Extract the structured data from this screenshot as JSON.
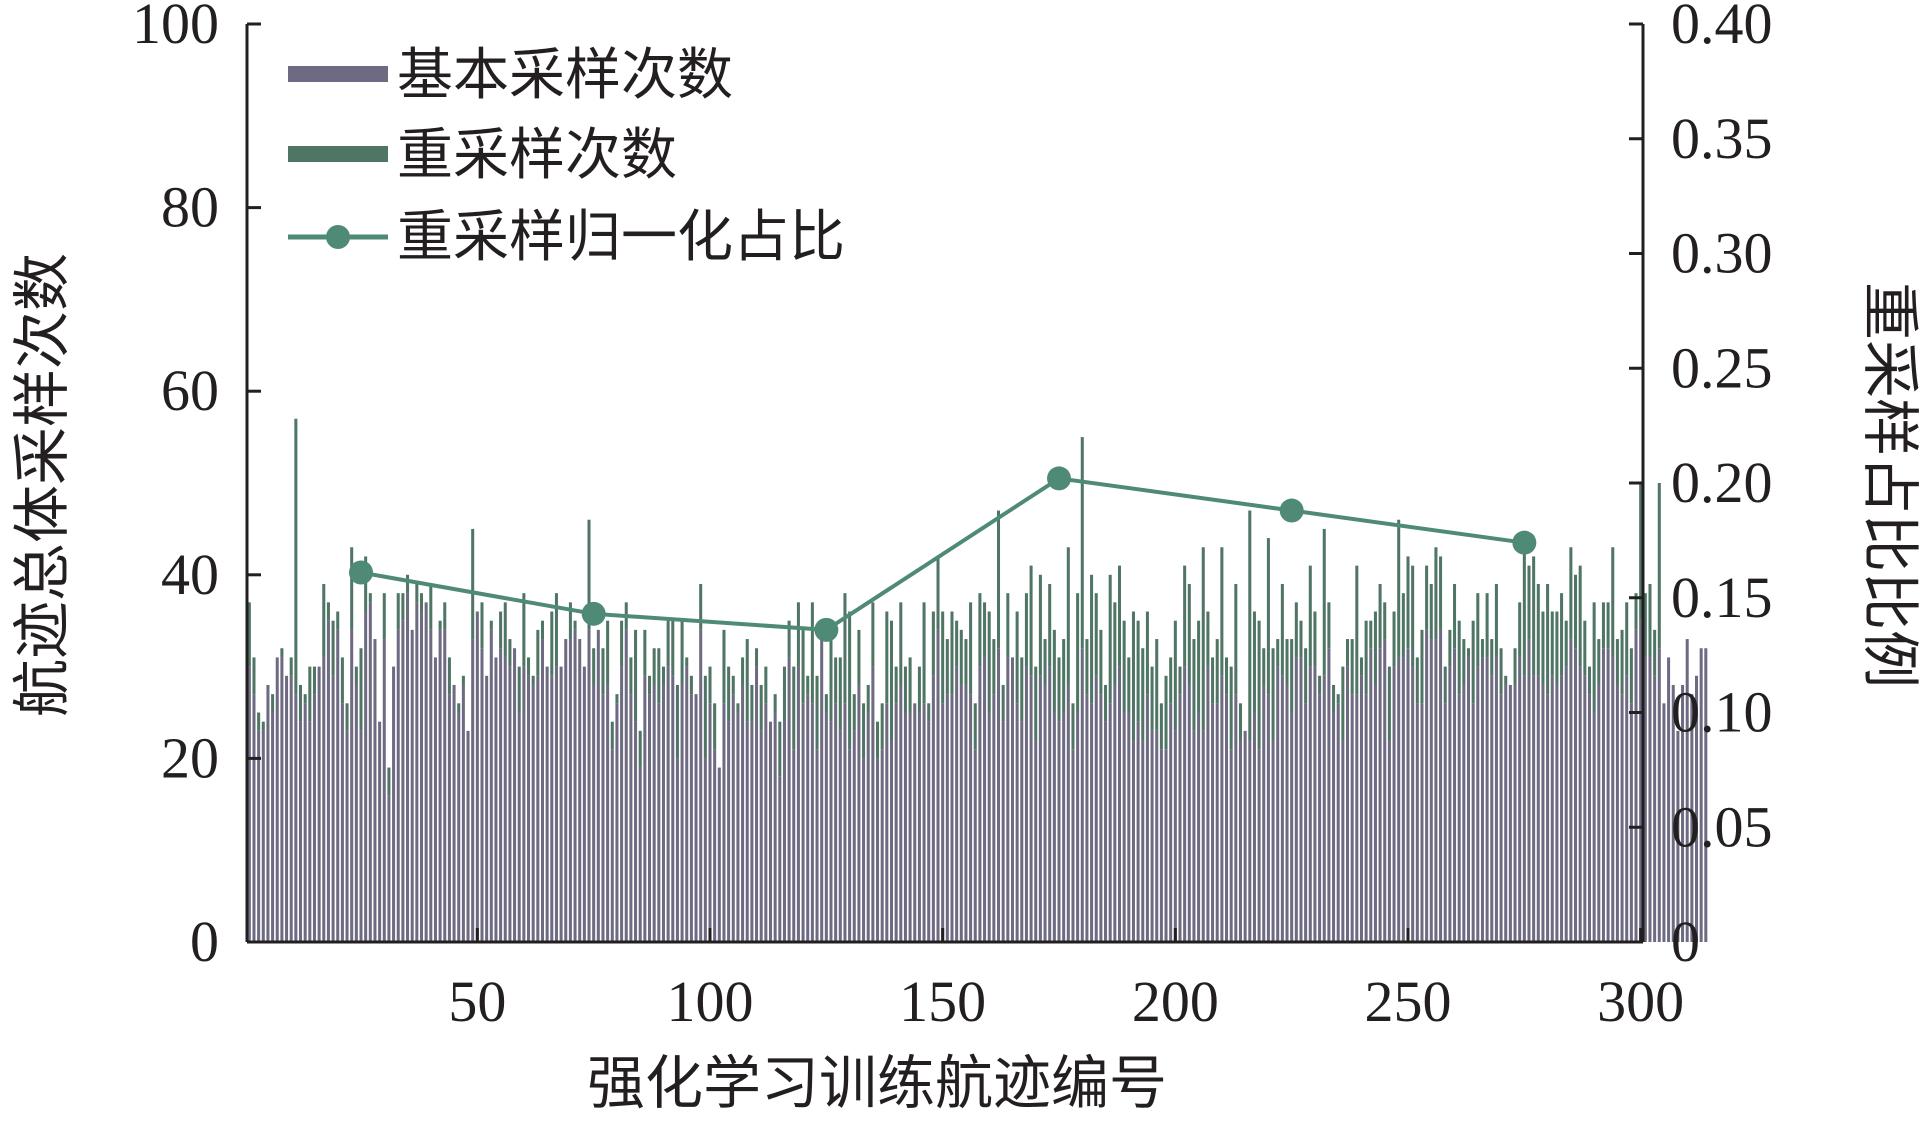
{
  "chart_data": {
    "type": "bar",
    "xlabel": "强化学习训练航迹编号",
    "ylabel_left": "航迹总体采样次数",
    "ylabel_right": "重采样占比比例",
    "xlim": [
      1,
      300
    ],
    "ylim_left": [
      0,
      100
    ],
    "ylim_right": [
      0,
      0.4
    ],
    "x_ticks": [
      50,
      100,
      150,
      200,
      250,
      300
    ],
    "y_ticks_left": [
      0,
      20,
      40,
      60,
      80,
      100
    ],
    "y_ticks_right": [
      "0",
      "0.05",
      "0.10",
      "0.15",
      "0.20",
      "0.25",
      "0.30",
      "0.35",
      "0.40"
    ],
    "legend_position": "top-left",
    "grid": false,
    "colors": {
      "base": "#6d6a82",
      "resample": "#4f7565",
      "ratio": "#4f8a77",
      "axis": "#231f20"
    },
    "series": [
      {
        "name": "基本采样次数",
        "type": "bar",
        "axis": "left",
        "values": [
          30,
          27,
          23,
          23,
          28,
          25,
          31,
          31,
          29,
          29,
          27,
          24,
          26,
          24,
          27,
          30,
          31,
          35,
          29,
          34,
          26,
          23,
          34,
          28,
          23,
          36,
          37,
          33,
          24,
          33,
          16,
          30,
          34,
          35,
          38,
          34,
          37,
          36,
          37,
          34,
          31,
          34,
          34,
          27,
          28,
          25,
          28,
          23,
          33,
          36,
          32,
          29,
          34,
          31,
          32,
          31,
          30,
          32,
          25,
          30,
          29,
          28,
          29,
          33,
          30,
          29,
          30,
          30,
          33,
          33,
          34,
          33,
          30,
          34,
          28,
          34,
          27,
          28,
          21,
          26,
          30,
          34,
          27,
          24,
          19,
          29,
          27,
          28,
          26,
          28,
          30,
          29,
          20,
          28,
          30,
          27,
          27,
          34,
          20,
          26,
          21,
          19,
          26,
          24,
          27,
          25,
          28,
          24,
          24,
          30,
          23,
          26,
          24,
          25,
          18,
          24,
          31,
          21,
          30,
          26,
          27,
          26,
          21,
          33,
          25,
          24,
          26,
          23,
          26,
          21,
          23,
          28,
          20,
          25,
          30,
          20,
          21,
          26,
          22,
          26,
          28,
          25,
          25,
          26,
          25,
          26,
          24,
          29,
          34,
          26,
          27,
          27,
          30,
          28,
          28,
          27,
          21,
          30,
          31,
          25,
          27,
          32,
          24,
          31,
          31,
          26,
          24,
          30,
          29,
          22,
          29,
          28,
          30,
          25,
          24,
          25,
          28,
          21,
          25,
          32,
          27,
          26,
          29,
          27,
          24,
          26,
          28,
          30,
          25,
          25,
          22,
          24,
          22,
          27,
          23,
          23,
          21,
          21,
          26,
          23,
          27,
          30,
          28,
          23,
          25,
          23,
          30,
          26,
          26,
          29,
          27,
          21,
          27,
          22,
          23,
          22,
          25,
          21,
          28,
          27,
          22,
          30,
          29,
          28,
          25,
          31,
          31,
          26,
          30,
          30,
          27,
          29,
          32,
          25,
          26,
          22,
          30,
          27,
          27,
          29,
          27,
          32,
          28,
          32,
          33,
          22,
          30,
          31,
          31,
          32,
          30,
          26,
          26,
          34,
          33,
          33,
          34,
          26,
          30,
          32,
          27,
          28,
          31,
          26,
          30,
          31,
          31,
          29,
          31,
          27,
          28,
          28,
          28,
          31,
          29,
          33,
          29,
          29,
          28,
          27,
          29,
          28,
          29,
          30,
          33,
          32,
          30,
          29,
          27,
          25,
          28,
          32,
          32,
          31,
          28,
          27,
          29,
          26,
          34,
          35,
          31,
          31,
          29,
          32,
          26,
          31,
          28,
          23,
          28,
          33,
          27,
          29,
          32,
          32
        ]
      },
      {
        "name": "重采样次数",
        "type": "bar",
        "axis": "left",
        "values": [
          7,
          4,
          2,
          1,
          0,
          2,
          0,
          1,
          0,
          2,
          30,
          4,
          1,
          6,
          3,
          0,
          8,
          2,
          6,
          2,
          5,
          3,
          9,
          2,
          9,
          6,
          1,
          0,
          0,
          5,
          3,
          0,
          4,
          3,
          2,
          0,
          2,
          2,
          0,
          5,
          0,
          1,
          3,
          4,
          0,
          1,
          1,
          0,
          12,
          0,
          5,
          0,
          1,
          0,
          4,
          6,
          3,
          0,
          5,
          8,
          2,
          1,
          5,
          2,
          0,
          7,
          8,
          0,
          0,
          4,
          1,
          0,
          0,
          12,
          4,
          0,
          5,
          7,
          3,
          1,
          5,
          3,
          4,
          10,
          4,
          5,
          2,
          4,
          6,
          2,
          5,
          6,
          8,
          7,
          1,
          2,
          0,
          5,
          9,
          4,
          5,
          0,
          8,
          6,
          2,
          1,
          3,
          9,
          4,
          2,
          5,
          4,
          0,
          2,
          6,
          6,
          4,
          9,
          7,
          8,
          2,
          11,
          8,
          0,
          2,
          9,
          5,
          8,
          12,
          15,
          4,
          6,
          6,
          3,
          7,
          4,
          5,
          10,
          13,
          4,
          9,
          5,
          6,
          0,
          5,
          11,
          2,
          7,
          8,
          10,
          6,
          9,
          5,
          6,
          5,
          10,
          5,
          8,
          6,
          11,
          6,
          15,
          4,
          7,
          0,
          10,
          7,
          8,
          12,
          8,
          11,
          5,
          9,
          9,
          7,
          8,
          15,
          5,
          13,
          23,
          6,
          14,
          9,
          7,
          4,
          14,
          9,
          11,
          10,
          6,
          14,
          11,
          10,
          9,
          7,
          10,
          5,
          8,
          5,
          12,
          3,
          11,
          11,
          10,
          10,
          20,
          6,
          5,
          7,
          14,
          4,
          9,
          12,
          4,
          0,
          25,
          11,
          14,
          4,
          17,
          10,
          3,
          10,
          5,
          8,
          6,
          4,
          6,
          11,
          6,
          2,
          16,
          5,
          3,
          1,
          8,
          3,
          6,
          14,
          2,
          8,
          3,
          8,
          7,
          4,
          8,
          6,
          15,
          7,
          10,
          11,
          5,
          8,
          7,
          6,
          10,
          8,
          4,
          4,
          7,
          8,
          5,
          1,
          9,
          8,
          2,
          7,
          4,
          8,
          5,
          1,
          0,
          4,
          6,
          15,
          8,
          13,
          10,
          8,
          12,
          7,
          8,
          9,
          5,
          10,
          8,
          11,
          6,
          3,
          12,
          5,
          5,
          5,
          12,
          5,
          7,
          8,
          6,
          4,
          15,
          7,
          8,
          5,
          18
        ]
      },
      {
        "name": "重采样归一化占比",
        "type": "line",
        "axis": "right",
        "x": [
          25,
          75,
          125,
          175,
          225,
          275
        ],
        "values": [
          0.161,
          0.143,
          0.136,
          0.202,
          0.188,
          0.174
        ]
      }
    ]
  }
}
